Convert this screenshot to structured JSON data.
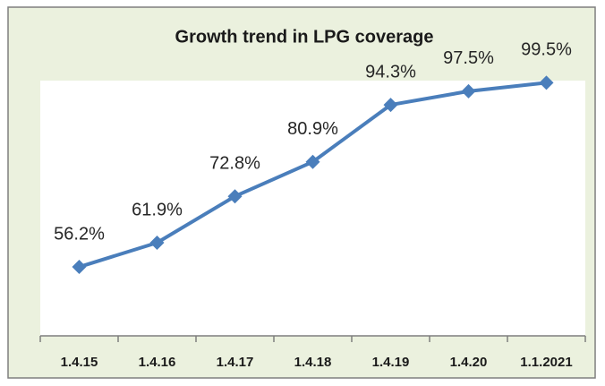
{
  "chart_data": {
    "type": "line",
    "title": "Growth trend in LPG coverage",
    "categories": [
      "1.4.15",
      "1.4.16",
      "1.4.17",
      "1.4.18",
      "1.4.19",
      "1.4.20",
      "1.1.2021"
    ],
    "values": [
      56.2,
      61.9,
      72.8,
      80.9,
      94.3,
      97.5,
      99.5
    ],
    "value_labels": [
      "56.2%",
      "61.9%",
      "72.8%",
      "80.9%",
      "94.3%",
      "97.5%",
      "99.5%"
    ],
    "color": "#4a7ebb",
    "ylim": [
      40,
      100
    ]
  }
}
